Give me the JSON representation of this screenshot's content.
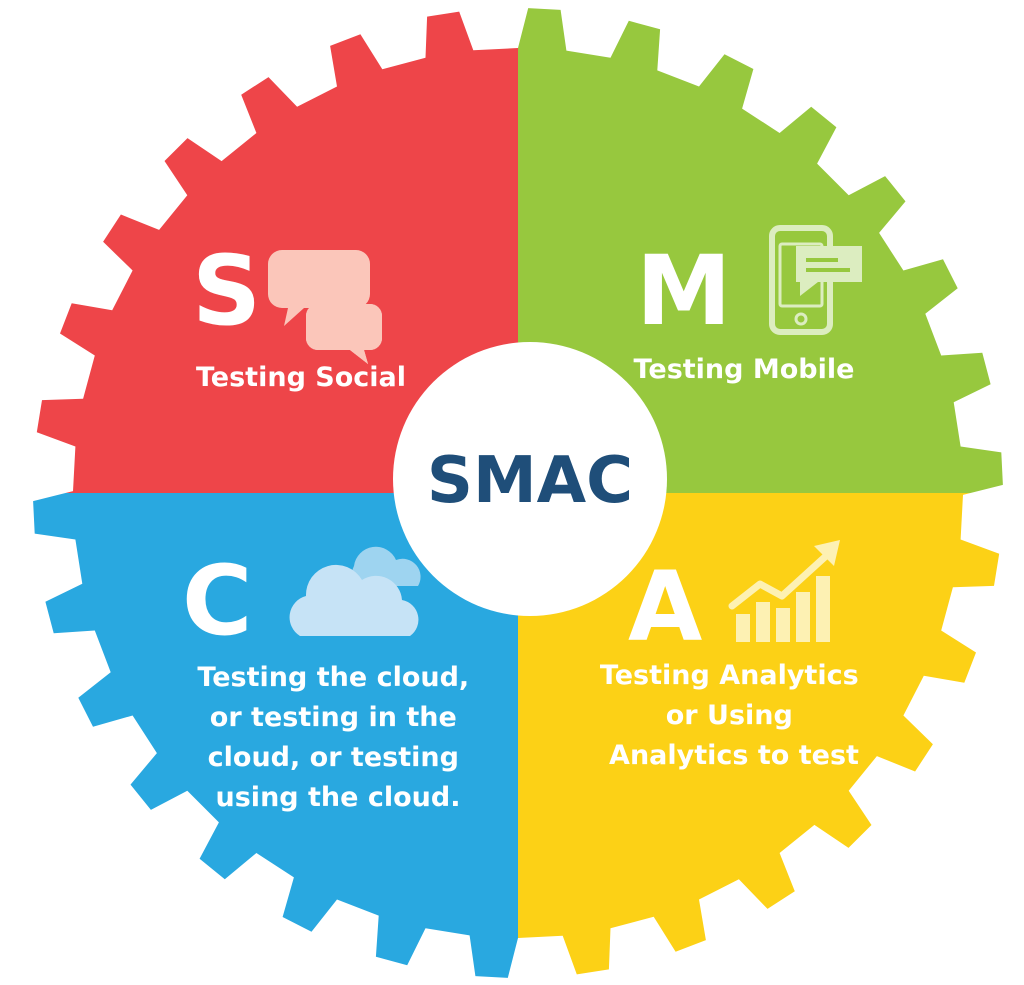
{
  "center": {
    "title": "SMAC",
    "title_color": "#1f4e79",
    "circle_color": "#ffffff"
  },
  "quadrants": [
    {
      "id": "social",
      "letter": "S",
      "label_lines": [
        "Testing Social"
      ],
      "color": "#ee4549",
      "icon": "speech-bubbles-icon",
      "icon_color": "#fbc6ba"
    },
    {
      "id": "mobile",
      "letter": "M",
      "label_lines": [
        "Testing Mobile"
      ],
      "color": "#97c83e",
      "icon": "smartphone-message-icon",
      "icon_color": "#dcedc0"
    },
    {
      "id": "cloud",
      "letter": "C",
      "label_lines": [
        "Testing the cloud,",
        "or testing in the",
        "cloud, or testing",
        "using the cloud."
      ],
      "color": "#29a8e0",
      "icon": "cloud-icon",
      "icon_color": "#c6e3f6"
    },
    {
      "id": "analytics",
      "letter": "A",
      "label_lines": [
        "Testing Analytics",
        "or Using",
        "Analytics to test"
      ],
      "color": "#fcd116",
      "icon": "bar-chart-trend-icon",
      "icon_color": "#fdf1b3"
    }
  ]
}
